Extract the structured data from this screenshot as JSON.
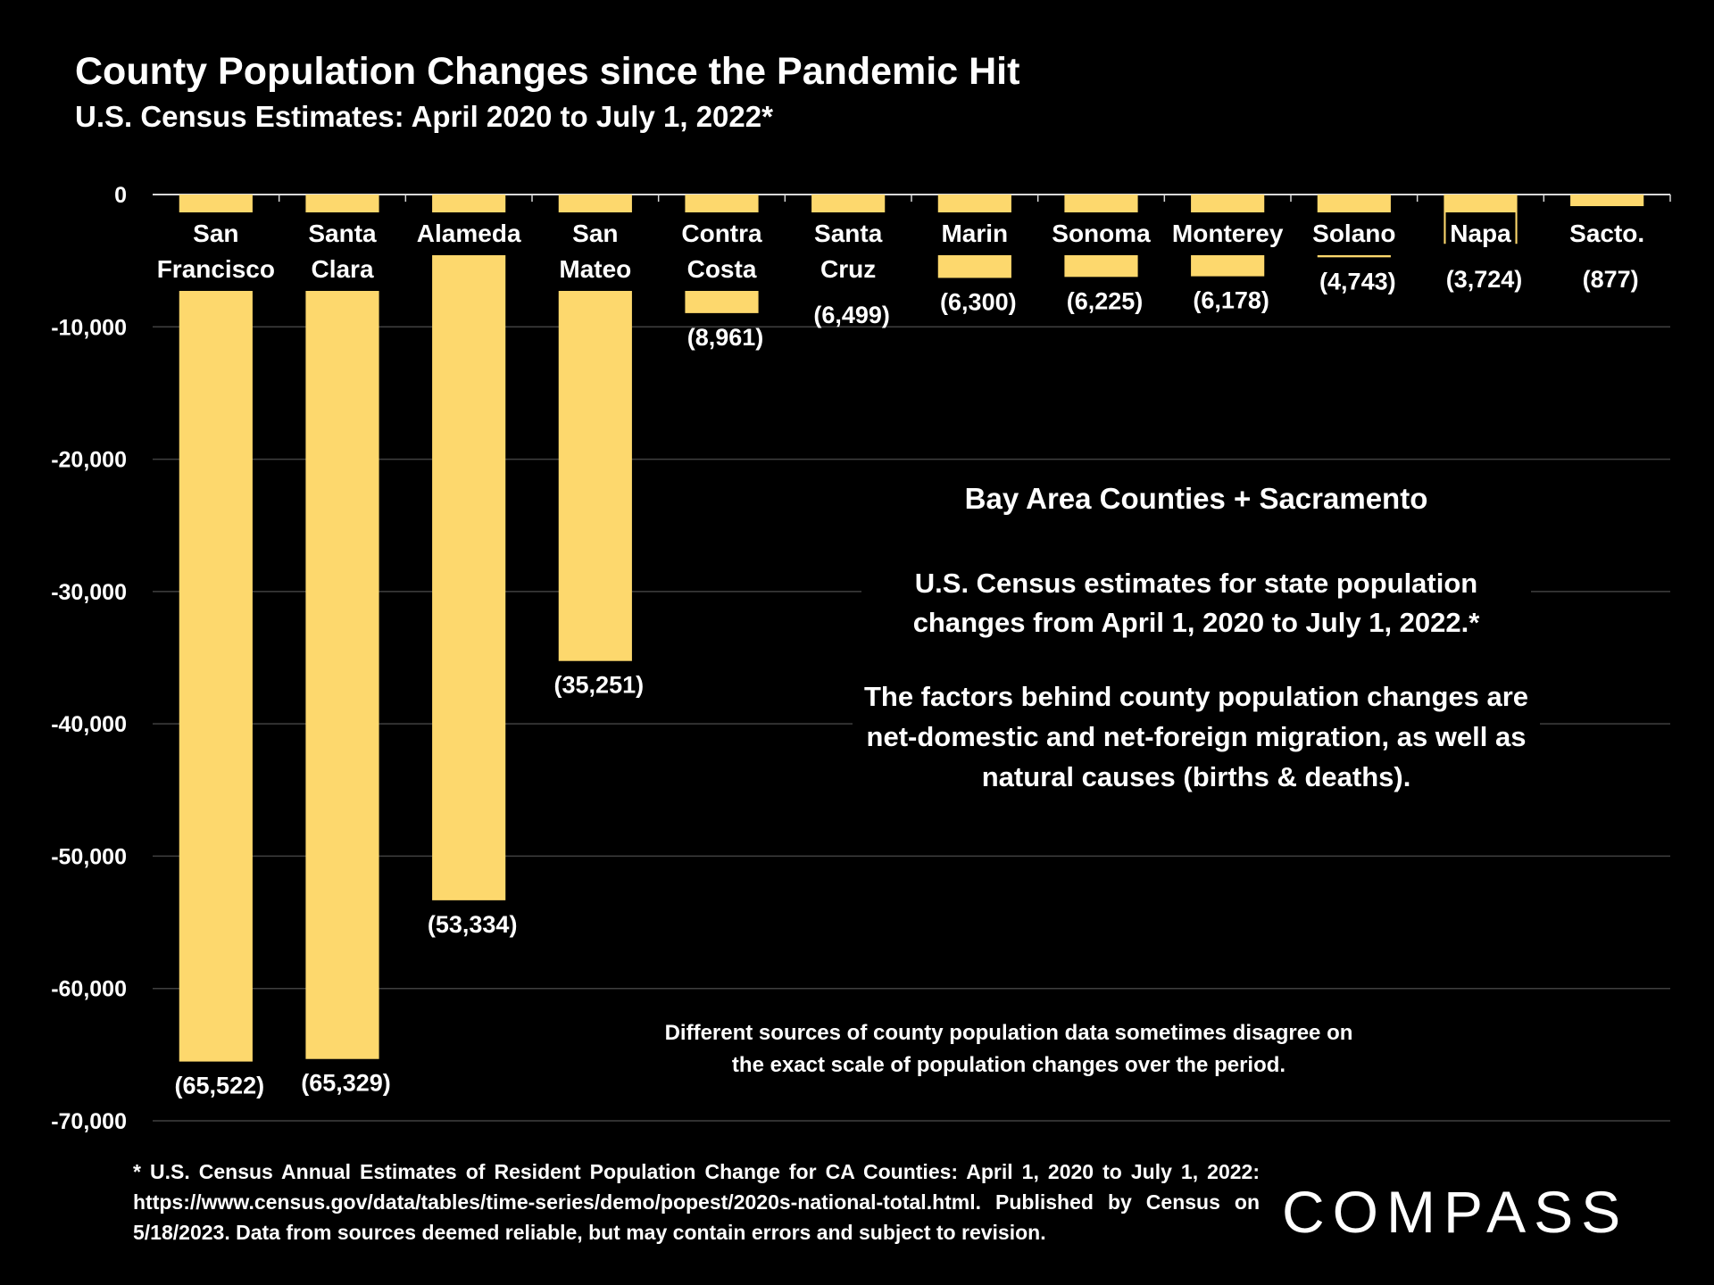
{
  "chart_data": {
    "type": "bar",
    "title": "County Population Changes since the Pandemic Hit",
    "subtitle": "U.S. Census Estimates: April 2020 to July 1, 2022*",
    "categories": [
      "San Francisco",
      "Santa Clara",
      "Alameda",
      "San Mateo",
      "Contra Costa",
      "Santa Cruz",
      "Marin",
      "Sonoma",
      "Monterey",
      "Solano",
      "Napa",
      "Sacto."
    ],
    "values": [
      -65522,
      -65329,
      -53334,
      -35251,
      -8961,
      -6499,
      -6300,
      -6225,
      -6178,
      -4743,
      -3724,
      -877
    ],
    "value_labels": [
      "(65,522)",
      "(65,329)",
      "(53,334)",
      "(35,251)",
      "(8,961)",
      "(6,499)",
      "(6,300)",
      "(6,225)",
      "(6,178)",
      "(4,743)",
      "(3,724)",
      "(877)"
    ],
    "color": "#fdd86d",
    "ylim": [
      -70000,
      0
    ],
    "yticks": [
      0,
      {
        "value": -10000,
        "label": "-10,000"
      },
      {
        "value": -20000,
        "label": "-20,000"
      },
      {
        "value": -30000,
        "label": "-30,000"
      },
      {
        "value": -40000,
        "label": "-40,000"
      },
      {
        "value": -50000,
        "label": "-50,000"
      },
      {
        "value": -60000,
        "label": "-60,000"
      },
      {
        "value": -70000,
        "label": "-70,000"
      }
    ],
    "grid": true,
    "annotations": {
      "heading": "Bay Area Counties + Sacramento",
      "para1": "U.S. Census estimates for state population changes from April 1, 2020 to July 1, 2022.*",
      "para2": "The factors behind county population changes are net-domestic and net-foreign migration, as well as natural causes (births & deaths).",
      "note": "Different sources of county population data sometimes disagree on the exact scale of population changes over the period.",
      "footnote": "* U.S. Census Annual Estimates of Resident Population Change for CA Counties: April 1, 2020 to July 1, 2022: https://www.census.gov/data/tables/time-series/demo/popest/2020s-national-total.html. Published by Census on 5/18/2023. Data from sources deemed reliable, but may contain errors and subject to revision.",
      "logo": "COMPASS"
    }
  }
}
